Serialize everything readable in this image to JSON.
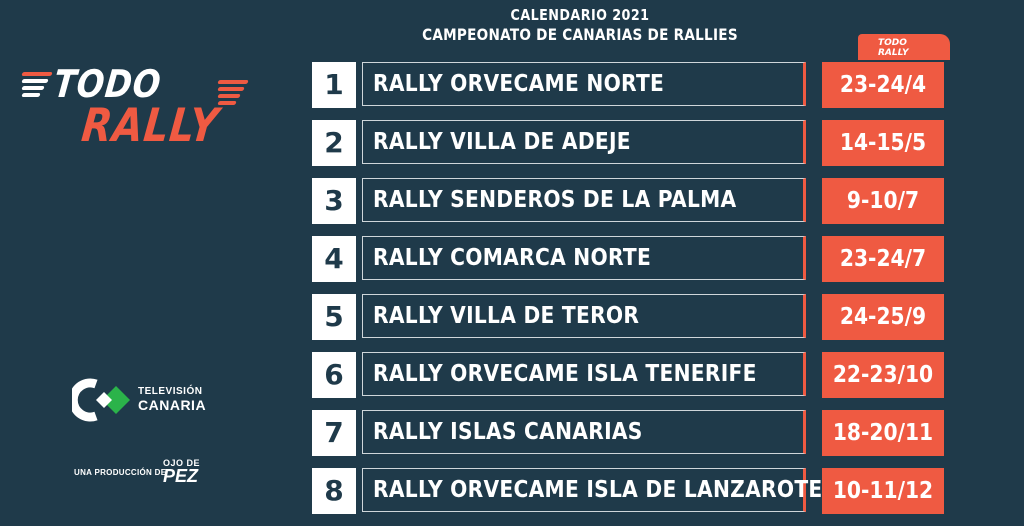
{
  "header": {
    "line1": "CALENDARIO 2021",
    "line2": "CAMPEONATO DE CANARIAS DE RALLIES"
  },
  "logo": {
    "todo": "TODO",
    "rally": "RALLY"
  },
  "tag": {
    "line1": "TODO",
    "line2": "RALLY"
  },
  "rallies": [
    {
      "num": "1",
      "name": "RALLY ORVECAME NORTE",
      "date": "23-24/4"
    },
    {
      "num": "2",
      "name": "RALLY VILLA DE ADEJE",
      "date": "14-15/5"
    },
    {
      "num": "3",
      "name": "RALLY SENDEROS DE LA PALMA",
      "date": "9-10/7"
    },
    {
      "num": "4",
      "name": "RALLY COMARCA NORTE",
      "date": "23-24/7"
    },
    {
      "num": "5",
      "name": "RALLY VILLA DE TEROR",
      "date": "24-25/9"
    },
    {
      "num": "6",
      "name": "RALLY ORVECAME ISLA TENERIFE",
      "date": "22-23/10"
    },
    {
      "num": "7",
      "name": "RALLY ISLAS CANARIAS",
      "date": "18-20/11"
    },
    {
      "num": "8",
      "name": "RALLY ORVECAME ISLA DE LANZAROTE",
      "date": "10-11/12"
    }
  ],
  "tv": {
    "line1": "TELEVISIÓN",
    "line2": "CANARIA"
  },
  "production": {
    "label": "UNA PRODUCCIÓN DE",
    "brand1": "OJO DE",
    "brand2": "PEZ"
  },
  "colors": {
    "background": "#1f3a4a",
    "accent": "#ef5a42",
    "white": "#ffffff",
    "tv_green": "#2bb34a"
  }
}
